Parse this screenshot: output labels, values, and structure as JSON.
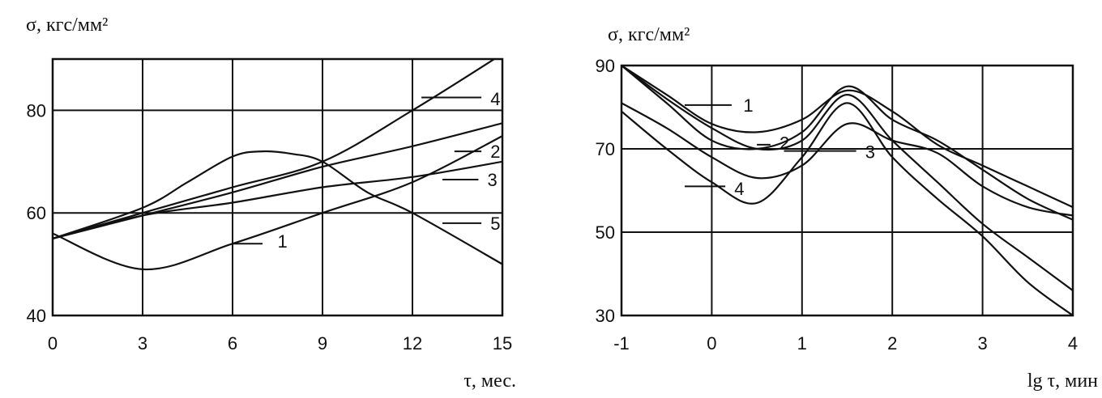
{
  "chart_data": [
    {
      "type": "line",
      "ylabel": "σ, кгс/мм²",
      "xlabel": "τ, мес.",
      "xlim": [
        0,
        15
      ],
      "ylim": [
        40,
        90
      ],
      "xticks": [
        0,
        3,
        6,
        9,
        12,
        15
      ],
      "yticks": [
        40,
        60,
        80
      ],
      "grid": true,
      "series": [
        {
          "name": "1",
          "x": [
            0,
            3,
            6,
            9,
            12,
            15
          ],
          "y": [
            56,
            49,
            54,
            60,
            66,
            75
          ]
        },
        {
          "name": "2",
          "x": [
            0,
            3,
            6,
            9,
            12,
            15
          ],
          "y": [
            55,
            59.5,
            64,
            69,
            73,
            77.5
          ]
        },
        {
          "name": "3",
          "x": [
            0,
            3,
            6,
            9,
            12,
            15
          ],
          "y": [
            55,
            59.5,
            62,
            65,
            67,
            70
          ]
        },
        {
          "name": "4",
          "x": [
            0,
            3,
            6,
            9,
            12,
            15
          ],
          "y": [
            55,
            60,
            65,
            70,
            80,
            91
          ]
        },
        {
          "name": "5",
          "x": [
            0,
            3,
            4.5,
            6,
            7,
            8,
            9,
            10.5,
            12,
            15
          ],
          "y": [
            55,
            61,
            66,
            71,
            72,
            71.5,
            70,
            64,
            60,
            50
          ]
        }
      ],
      "curve_labels": [
        {
          "text": "1",
          "at": [
            7.5,
            54.5
          ]
        },
        {
          "text": "2",
          "at": [
            14.6,
            72
          ]
        },
        {
          "text": "3",
          "at": [
            14.5,
            66.5
          ]
        },
        {
          "text": "4",
          "at": [
            14.6,
            82.3
          ]
        },
        {
          "text": "5",
          "at": [
            14.6,
            58
          ]
        }
      ],
      "label_leaders": [
        {
          "from": [
            6,
            54
          ],
          "to": [
            7.0,
            54
          ]
        },
        {
          "from": [
            13.4,
            72
          ],
          "to": [
            14.3,
            72
          ]
        },
        {
          "from": [
            13,
            66.5
          ],
          "to": [
            14.2,
            66.5
          ]
        },
        {
          "from": [
            12.3,
            82.5
          ],
          "to": [
            14.3,
            82.5
          ]
        },
        {
          "from": [
            13.0,
            58
          ],
          "to": [
            14.3,
            58
          ]
        }
      ]
    },
    {
      "type": "line",
      "ylabel": "σ, кгс/мм²",
      "xlabel": "lg τ, мин",
      "xlim": [
        -1,
        4
      ],
      "ylim": [
        30,
        90
      ],
      "xticks": [
        -1,
        0,
        1,
        2,
        3,
        4
      ],
      "yticks": [
        30,
        50,
        70,
        90
      ],
      "grid": true,
      "series": [
        {
          "name": "1",
          "x": [
            -1,
            -0.5,
            0,
            0.5,
            1,
            1.5,
            2,
            2.5,
            3,
            3.5,
            4
          ],
          "y": [
            90,
            83,
            76,
            74,
            77,
            84,
            79,
            71,
            66,
            61,
            56
          ]
        },
        {
          "name": "2",
          "x": [
            -1,
            -0.5,
            0,
            0.5,
            1,
            1.5,
            2,
            2.5,
            3,
            3.5,
            4
          ],
          "y": [
            90,
            81,
            72,
            70,
            74,
            85,
            77,
            72,
            65,
            58,
            53
          ]
        },
        {
          "name": "3",
          "x": [
            -1,
            -0.5,
            0,
            0.5,
            1,
            1.5,
            2,
            2.5,
            3,
            3.5,
            4
          ],
          "y": [
            81,
            75,
            68,
            63,
            66,
            76,
            72,
            69,
            61,
            56,
            54
          ]
        },
        {
          "name": "4",
          "x": [
            -1,
            -0.5,
            0,
            0.5,
            1,
            1.5,
            2,
            2.5,
            3,
            3.5,
            4
          ],
          "y": [
            79,
            70,
            62,
            57,
            68,
            81,
            68,
            58,
            49,
            38,
            30
          ]
        },
        {
          "name": "",
          "x": [
            -1,
            -0.5,
            0,
            0.5,
            1,
            1.5,
            2,
            2.5,
            3,
            3.5,
            4
          ],
          "y": [
            90,
            82,
            75,
            70,
            72,
            83,
            72,
            62,
            52,
            44,
            36
          ]
        }
      ],
      "curve_labels": [
        {
          "text": "1",
          "at": [
            0.35,
            80.5
          ]
        },
        {
          "text": "2",
          "at": [
            0.75,
            71.5
          ]
        },
        {
          "text": "3",
          "at": [
            1.7,
            69.3
          ]
        },
        {
          "text": "4",
          "at": [
            0.25,
            60.5
          ]
        }
      ],
      "label_leaders": [
        {
          "from": [
            -0.3,
            80.5
          ],
          "to": [
            0.22,
            80.5
          ]
        },
        {
          "from": [
            0.5,
            71
          ],
          "to": [
            0.65,
            71
          ]
        },
        {
          "from": [
            0.8,
            69.5
          ],
          "to": [
            1.6,
            69.5
          ]
        },
        {
          "from": [
            -0.3,
            61
          ],
          "to": [
            0.15,
            61
          ]
        }
      ]
    }
  ]
}
